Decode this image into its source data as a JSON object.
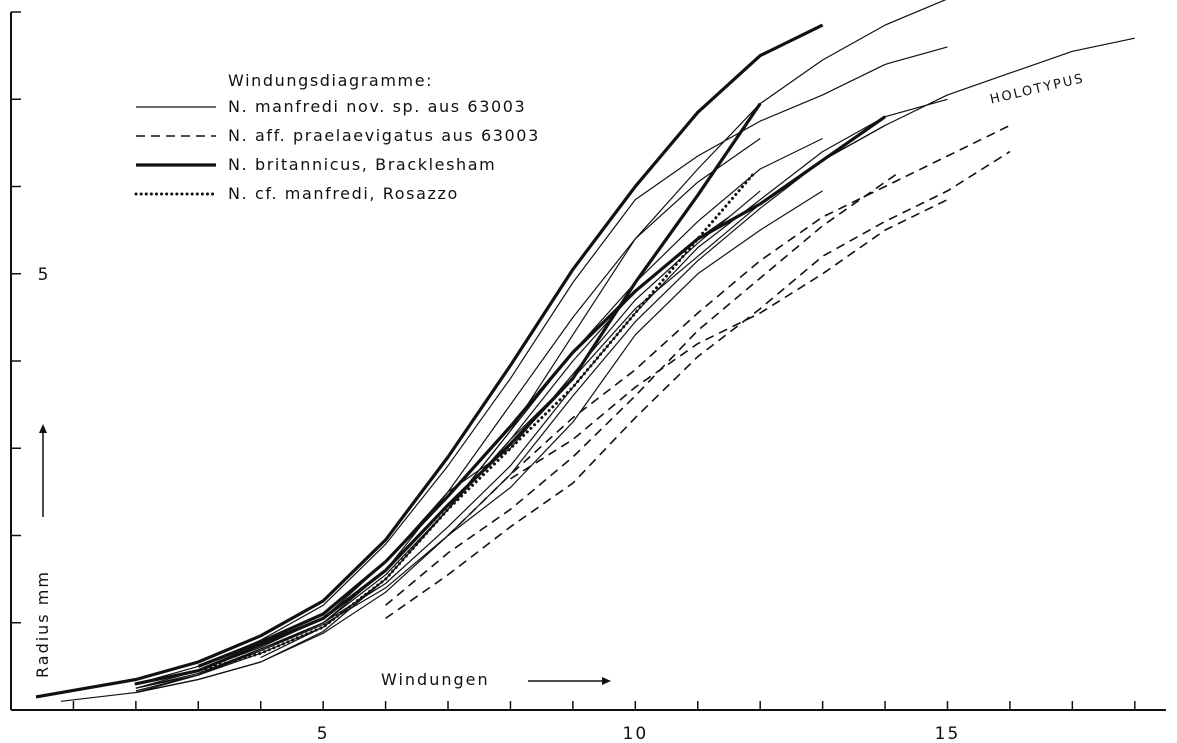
{
  "chart_data": {
    "type": "line",
    "title": "",
    "xlabel": "Windungen",
    "ylabel": "Radius mm",
    "xlim": [
      0,
      18.5
    ],
    "ylim": [
      0,
      8
    ],
    "x_ticks": [
      {
        "value": 5,
        "label": "5"
      },
      {
        "value": 10,
        "label": "10"
      },
      {
        "value": 15,
        "label": "15"
      }
    ],
    "x_minor_ticks": [
      1,
      2,
      3,
      4,
      6,
      7,
      8,
      9,
      11,
      12,
      13,
      14,
      16,
      17,
      18
    ],
    "y_ticks": [
      {
        "value": 5,
        "label": "5"
      }
    ],
    "y_minor_ticks": [
      1,
      2,
      3,
      4,
      6,
      7,
      8
    ],
    "legend": {
      "title": "Windungsdiagramme:",
      "position": "top-left",
      "entries": [
        {
          "label": "N. manfredi nov. sp.   aus 63003",
          "style": "thin"
        },
        {
          "label": "N. aff. praelaevigatus aus 63003",
          "style": "dashed"
        },
        {
          "label": "N. britannicus,  Bracklesham",
          "style": "thick"
        },
        {
          "label": "N. cf. manfredi,  Rosazzo",
          "style": "dotted"
        }
      ]
    },
    "annotations": [
      {
        "text": "HOLOTYPUS",
        "x": 15.7,
        "y": 6.95,
        "rotation": -13
      }
    ],
    "series": [
      {
        "style": "thin",
        "points": [
          [
            0.8,
            0.1
          ],
          [
            2,
            0.2
          ],
          [
            3,
            0.35
          ],
          [
            4,
            0.55
          ],
          [
            5,
            0.9
          ],
          [
            6,
            1.5
          ],
          [
            7,
            2.3
          ],
          [
            8,
            3.2
          ],
          [
            9,
            4.3
          ],
          [
            10,
            5.4
          ],
          [
            11,
            6.2
          ],
          [
            12,
            6.95
          ],
          [
            13,
            7.45
          ],
          [
            14,
            7.85
          ],
          [
            15,
            8.15
          ]
        ]
      },
      {
        "style": "thin",
        "points": [
          [
            2,
            0.3
          ],
          [
            3,
            0.5
          ],
          [
            4,
            0.8
          ],
          [
            5,
            1.2
          ],
          [
            6,
            1.9
          ],
          [
            7,
            2.8
          ],
          [
            8,
            3.8
          ],
          [
            9,
            4.9
          ],
          [
            10,
            5.85
          ],
          [
            11,
            6.35
          ],
          [
            12,
            6.75
          ],
          [
            13,
            7.05
          ],
          [
            14,
            7.4
          ],
          [
            15,
            7.6
          ]
        ]
      },
      {
        "style": "thin",
        "points": [
          [
            2,
            0.25
          ],
          [
            3,
            0.4
          ],
          [
            4,
            0.65
          ],
          [
            5,
            0.95
          ],
          [
            6,
            1.5
          ],
          [
            7,
            2.3
          ],
          [
            8,
            3.1
          ],
          [
            9,
            3.8
          ],
          [
            10,
            4.6
          ],
          [
            11,
            5.2
          ],
          [
            12,
            5.8
          ],
          [
            13,
            6.3
          ],
          [
            14,
            6.7
          ],
          [
            15,
            7.05
          ],
          [
            16,
            7.3
          ],
          [
            17,
            7.55
          ],
          [
            18,
            7.7
          ]
        ]
      },
      {
        "style": "thin",
        "points": [
          [
            2,
            0.25
          ],
          [
            3,
            0.42
          ],
          [
            4,
            0.7
          ],
          [
            5,
            1.0
          ],
          [
            6,
            1.45
          ],
          [
            7,
            2.1
          ],
          [
            8,
            2.8
          ],
          [
            9,
            3.7
          ],
          [
            10,
            4.55
          ],
          [
            11,
            5.3
          ],
          [
            12,
            5.85
          ],
          [
            13,
            6.4
          ],
          [
            14,
            6.8
          ],
          [
            15,
            7.0
          ]
        ]
      },
      {
        "style": "thin",
        "points": [
          [
            2,
            0.25
          ],
          [
            3,
            0.45
          ],
          [
            4,
            0.72
          ],
          [
            5,
            1.05
          ],
          [
            6,
            1.7
          ],
          [
            7,
            2.5
          ],
          [
            8,
            3.5
          ],
          [
            9,
            4.5
          ],
          [
            10,
            5.4
          ],
          [
            11,
            6.05
          ],
          [
            12,
            6.55
          ]
        ]
      },
      {
        "style": "thin",
        "points": [
          [
            2,
            0.2
          ],
          [
            3,
            0.4
          ],
          [
            4,
            0.7
          ],
          [
            5,
            1.0
          ],
          [
            6,
            1.55
          ],
          [
            7,
            2.3
          ],
          [
            8,
            3.2
          ],
          [
            9,
            4.1
          ],
          [
            10,
            4.9
          ],
          [
            11,
            5.6
          ],
          [
            12,
            6.2
          ],
          [
            13,
            6.55
          ]
        ]
      },
      {
        "style": "thin",
        "points": [
          [
            2,
            0.22
          ],
          [
            3,
            0.4
          ],
          [
            4,
            0.68
          ],
          [
            5,
            1.0
          ],
          [
            6,
            1.6
          ],
          [
            7,
            2.5
          ],
          [
            8,
            3.0
          ],
          [
            9,
            3.85
          ],
          [
            10,
            4.7
          ],
          [
            11,
            5.35
          ],
          [
            12,
            5.95
          ]
        ]
      },
      {
        "style": "thin",
        "points": [
          [
            3,
            0.42
          ],
          [
            4,
            0.68
          ],
          [
            5,
            0.98
          ],
          [
            6,
            1.4
          ],
          [
            7,
            2.0
          ],
          [
            8,
            2.7
          ],
          [
            9,
            3.6
          ],
          [
            10,
            4.45
          ],
          [
            11,
            5.15
          ],
          [
            12,
            5.75
          ],
          [
            13,
            6.3
          ],
          [
            14,
            6.7
          ]
        ]
      },
      {
        "style": "thin",
        "points": [
          [
            4,
            0.6
          ],
          [
            5,
            0.95
          ],
          [
            6,
            1.5
          ],
          [
            7,
            2.3
          ],
          [
            8,
            3.1
          ],
          [
            9,
            4.0
          ],
          [
            10,
            4.8
          ],
          [
            11,
            5.4
          ],
          [
            11.5,
            5.65
          ]
        ]
      },
      {
        "style": "thin",
        "points": [
          [
            2,
            0.2
          ],
          [
            3,
            0.35
          ],
          [
            4,
            0.55
          ],
          [
            5,
            0.88
          ],
          [
            6,
            1.35
          ],
          [
            7,
            2.0
          ],
          [
            8,
            2.55
          ],
          [
            9,
            3.3
          ],
          [
            10,
            4.3
          ],
          [
            11,
            5.0
          ],
          [
            12,
            5.5
          ],
          [
            13,
            5.95
          ]
        ]
      },
      {
        "style": "dashed",
        "points": [
          [
            6,
            1.05
          ],
          [
            7,
            1.55
          ],
          [
            8,
            2.1
          ],
          [
            9,
            2.6
          ],
          [
            10,
            3.35
          ],
          [
            11,
            4.05
          ],
          [
            12,
            4.6
          ],
          [
            13,
            5.2
          ],
          [
            14,
            5.6
          ],
          [
            15,
            5.95
          ],
          [
            16,
            6.4
          ]
        ]
      },
      {
        "style": "dashed",
        "points": [
          [
            6,
            1.2
          ],
          [
            7,
            1.8
          ],
          [
            8,
            2.3
          ],
          [
            9,
            2.9
          ],
          [
            10,
            3.6
          ],
          [
            11,
            4.35
          ],
          [
            12,
            4.95
          ],
          [
            13,
            5.55
          ],
          [
            14,
            6.05
          ],
          [
            14.2,
            6.15
          ]
        ]
      },
      {
        "style": "dashed",
        "points": [
          [
            7,
            2.0
          ],
          [
            8,
            2.7
          ],
          [
            9,
            3.35
          ],
          [
            10,
            3.9
          ],
          [
            11,
            4.55
          ],
          [
            12,
            5.15
          ],
          [
            13,
            5.65
          ],
          [
            14,
            6.0
          ],
          [
            15,
            6.35
          ],
          [
            16,
            6.7
          ]
        ]
      },
      {
        "style": "dashed",
        "points": [
          [
            8,
            2.65
          ],
          [
            9,
            3.1
          ],
          [
            10,
            3.7
          ],
          [
            11,
            4.2
          ],
          [
            12,
            4.55
          ],
          [
            13,
            5.0
          ],
          [
            14,
            5.5
          ],
          [
            15,
            5.85
          ]
        ]
      },
      {
        "style": "thick",
        "points": [
          [
            0.4,
            0.15
          ],
          [
            2,
            0.35
          ],
          [
            3,
            0.55
          ],
          [
            4,
            0.85
          ],
          [
            5,
            1.25
          ],
          [
            6,
            1.95
          ],
          [
            7,
            2.9
          ],
          [
            8,
            3.95
          ],
          [
            9,
            5.05
          ],
          [
            10,
            6.0
          ],
          [
            11,
            6.85
          ],
          [
            12,
            7.5
          ],
          [
            13,
            7.85
          ]
        ]
      },
      {
        "style": "thick",
        "points": [
          [
            2,
            0.3
          ],
          [
            3,
            0.45
          ],
          [
            4,
            0.75
          ],
          [
            5,
            1.05
          ],
          [
            6,
            1.6
          ],
          [
            7,
            2.35
          ],
          [
            8,
            3.05
          ],
          [
            9,
            3.8
          ],
          [
            10,
            4.9
          ],
          [
            11,
            5.9
          ],
          [
            12,
            6.95
          ]
        ]
      },
      {
        "style": "thick",
        "points": [
          [
            3,
            0.5
          ],
          [
            4,
            0.78
          ],
          [
            5,
            1.1
          ],
          [
            6,
            1.7
          ],
          [
            7,
            2.45
          ],
          [
            8,
            3.25
          ],
          [
            9,
            4.1
          ],
          [
            10,
            4.8
          ],
          [
            11,
            5.4
          ],
          [
            12,
            5.8
          ],
          [
            13,
            6.3
          ],
          [
            14,
            6.8
          ]
        ]
      },
      {
        "style": "dotted",
        "points": [
          [
            2,
            0.3
          ],
          [
            3,
            0.45
          ],
          [
            4,
            0.65
          ],
          [
            5,
            0.95
          ],
          [
            6,
            1.5
          ],
          [
            7,
            2.3
          ],
          [
            8,
            3.0
          ],
          [
            9,
            3.7
          ],
          [
            10,
            4.55
          ],
          [
            11,
            5.4
          ],
          [
            11.9,
            6.15
          ]
        ]
      }
    ]
  }
}
